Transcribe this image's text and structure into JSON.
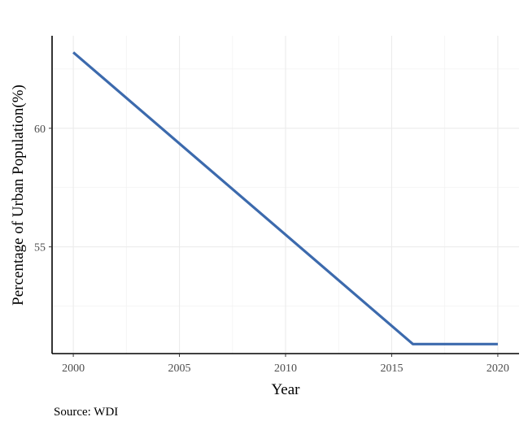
{
  "chart_data": {
    "type": "line",
    "title": "",
    "xlabel": "Year",
    "ylabel": "Percentage of Urban Population(%)",
    "caption": "Source: WDI",
    "xlim": [
      1999,
      2021
    ],
    "ylim": [
      50.5,
      63.9
    ],
    "x_ticks": [
      2000,
      2005,
      2010,
      2015,
      2020
    ],
    "y_ticks": [
      55,
      60
    ],
    "grid": true,
    "legend": "none",
    "series": [
      {
        "color": "#3c6aad",
        "x": [
          2000,
          2016,
          2020
        ],
        "y": [
          63.2,
          50.9,
          50.9
        ]
      }
    ]
  }
}
